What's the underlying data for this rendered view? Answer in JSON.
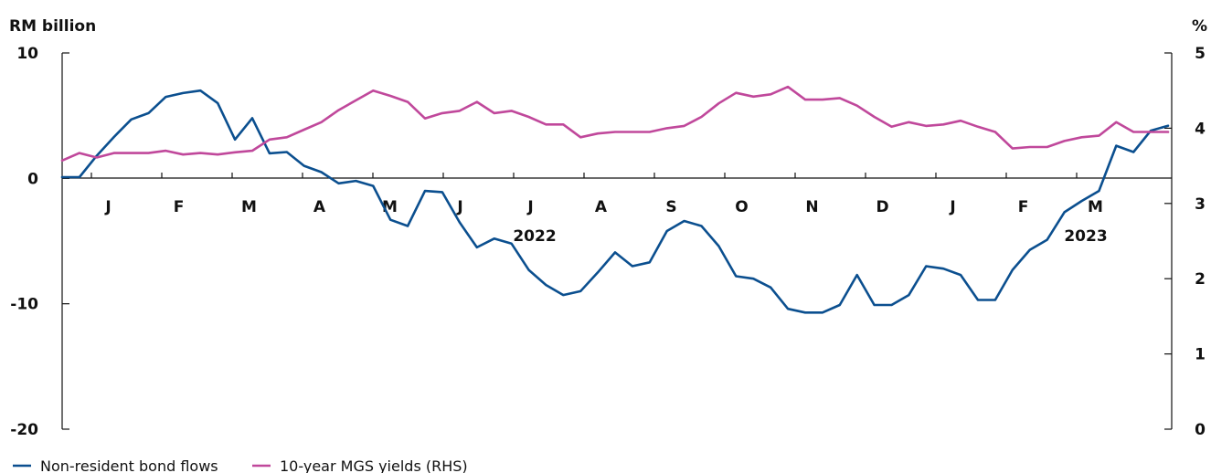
{
  "chart_data": {
    "type": "line",
    "left_axis_label": "RM billion",
    "right_axis_label": "%",
    "y_left": {
      "range": [
        -20,
        10
      ],
      "ticks": [
        "10",
        "0",
        "-10",
        "-20"
      ]
    },
    "y_right": {
      "range": [
        0,
        5
      ],
      "ticks": [
        "5",
        "4",
        "3",
        "2",
        "1",
        "0"
      ]
    },
    "month_labels": [
      "J",
      "F",
      "M",
      "A",
      "M",
      "J",
      "J",
      "A",
      "S",
      "O",
      "N",
      "D",
      "J",
      "F",
      "M"
    ],
    "year_labels": [
      "2022",
      "2023"
    ],
    "x_unit": "week index (Dec 2021 – Mar 2023)",
    "series": [
      {
        "name": "Non-resident bond flows",
        "axis": "left",
        "color": "#0b4f8f",
        "values": [
          0.1,
          0.1,
          1.8,
          3.3,
          4.7,
          5.2,
          6.5,
          6.8,
          7.0,
          6.0,
          3.1,
          4.8,
          2.0,
          2.1,
          1.0,
          0.5,
          -0.4,
          -0.2,
          -0.6,
          -3.3,
          -3.8,
          -1.0,
          -1.1,
          -3.5,
          -5.5,
          -4.8,
          -5.2,
          -7.3,
          -8.5,
          -9.3,
          -9.0,
          -7.5,
          -5.9,
          -7.0,
          -6.7,
          -4.2,
          -3.4,
          -3.8,
          -5.4,
          -7.8,
          -8.0,
          -8.7,
          -10.4,
          -10.7,
          -10.7,
          -10.1,
          -7.7,
          -10.1,
          -10.1,
          -9.3,
          -7.0,
          -7.2,
          -7.7,
          -9.7,
          -9.7,
          -7.3,
          -5.7,
          -4.9,
          -2.7,
          -1.8,
          -1.0,
          2.6,
          2.1,
          3.8,
          4.2
        ]
      },
      {
        "name": "10-year MGS yields (RHS)",
        "axis": "right",
        "color": "#c0489b",
        "values": [
          3.57,
          3.67,
          3.61,
          3.67,
          3.67,
          3.67,
          3.7,
          3.65,
          3.67,
          3.65,
          3.68,
          3.7,
          3.85,
          3.88,
          3.98,
          4.08,
          4.24,
          4.37,
          4.5,
          4.43,
          4.35,
          4.13,
          4.2,
          4.23,
          4.35,
          4.2,
          4.23,
          4.15,
          4.05,
          4.05,
          3.88,
          3.93,
          3.95,
          3.95,
          3.95,
          4.0,
          4.03,
          4.15,
          4.33,
          4.47,
          4.42,
          4.45,
          4.55,
          4.38,
          4.38,
          4.4,
          4.3,
          4.15,
          4.02,
          4.08,
          4.03,
          4.05,
          4.1,
          4.02,
          3.95,
          3.73,
          3.75,
          3.75,
          3.83,
          3.88,
          3.9,
          4.08,
          3.95,
          3.95,
          3.95
        ]
      }
    ],
    "legend_position": "bottom-left",
    "grid": false
  }
}
